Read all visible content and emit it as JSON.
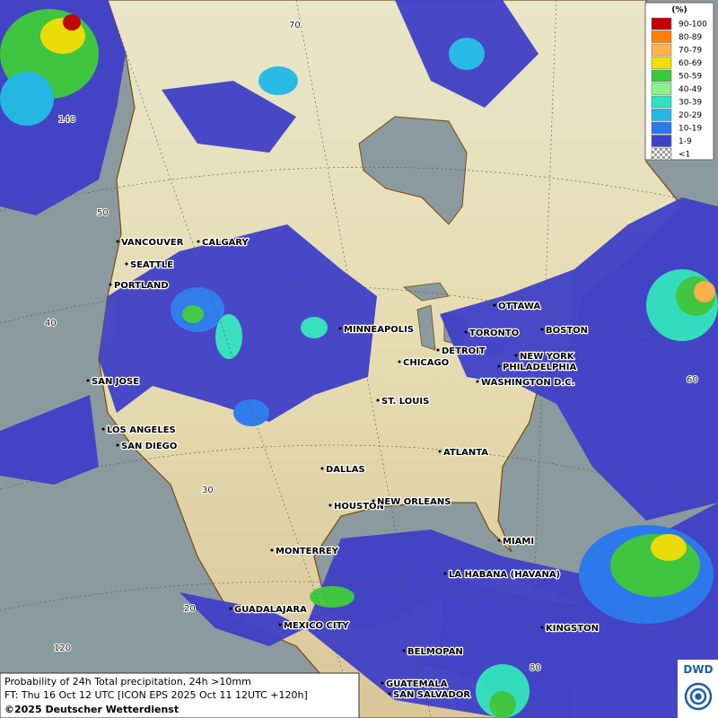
{
  "map": {
    "cities": [
      "VANCOUVER",
      "CALGARY",
      "SEATTLE",
      "PORTLAND",
      "MINNEAPOLIS",
      "OTTAWA",
      "TORONTO",
      "BOSTON",
      "DETROIT",
      "NEW YORK",
      "CHICAGO",
      "PHILADELPHIA",
      "SAN JOSE",
      "WASHINGTON D.C.",
      "ST. LOUIS",
      "LOS ANGELES",
      "SAN DIEGO",
      "ATLANTA",
      "DALLAS",
      "HOUSTON",
      "NEW ORLEANS",
      "MIAMI",
      "MONTERREY",
      "LA HABANA (HAVANA)",
      "GUADALAJARA",
      "MEXICO CITY",
      "KINGSTON",
      "BELMOPAN",
      "GUATEMALA",
      "SAN SALVADOR"
    ],
    "grid_labels": [
      "70",
      "140",
      "50",
      "40",
      "60",
      "30",
      "20",
      "120",
      "80"
    ]
  },
  "legend": {
    "title": "(%)",
    "entries": [
      {
        "label": "90-100",
        "color": "#c00000"
      },
      {
        "label": "80-89",
        "color": "#ff7f00"
      },
      {
        "label": "70-79",
        "color": "#ffb347"
      },
      {
        "label": "60-69",
        "color": "#f0e000"
      },
      {
        "label": "50-59",
        "color": "#3cc83c"
      },
      {
        "label": "40-49",
        "color": "#8ef08e"
      },
      {
        "label": "30-39",
        "color": "#30e0c0"
      },
      {
        "label": "20-29",
        "color": "#20b8e8"
      },
      {
        "label": "10-19",
        "color": "#2878f0"
      },
      {
        "label": "1-9",
        "color": "#4040c8"
      },
      {
        "label": "<1",
        "color": "checker"
      }
    ]
  },
  "footer": {
    "line1": "Probability of 24h Total precipitation, 24h >10mm",
    "line2": "FT: Thu 16 Oct 12 UTC [ICON EPS 2025 Oct 11 12UTC +120h]",
    "line3": "©2025 Deutscher Wetterdienst",
    "logo": "DWD"
  }
}
